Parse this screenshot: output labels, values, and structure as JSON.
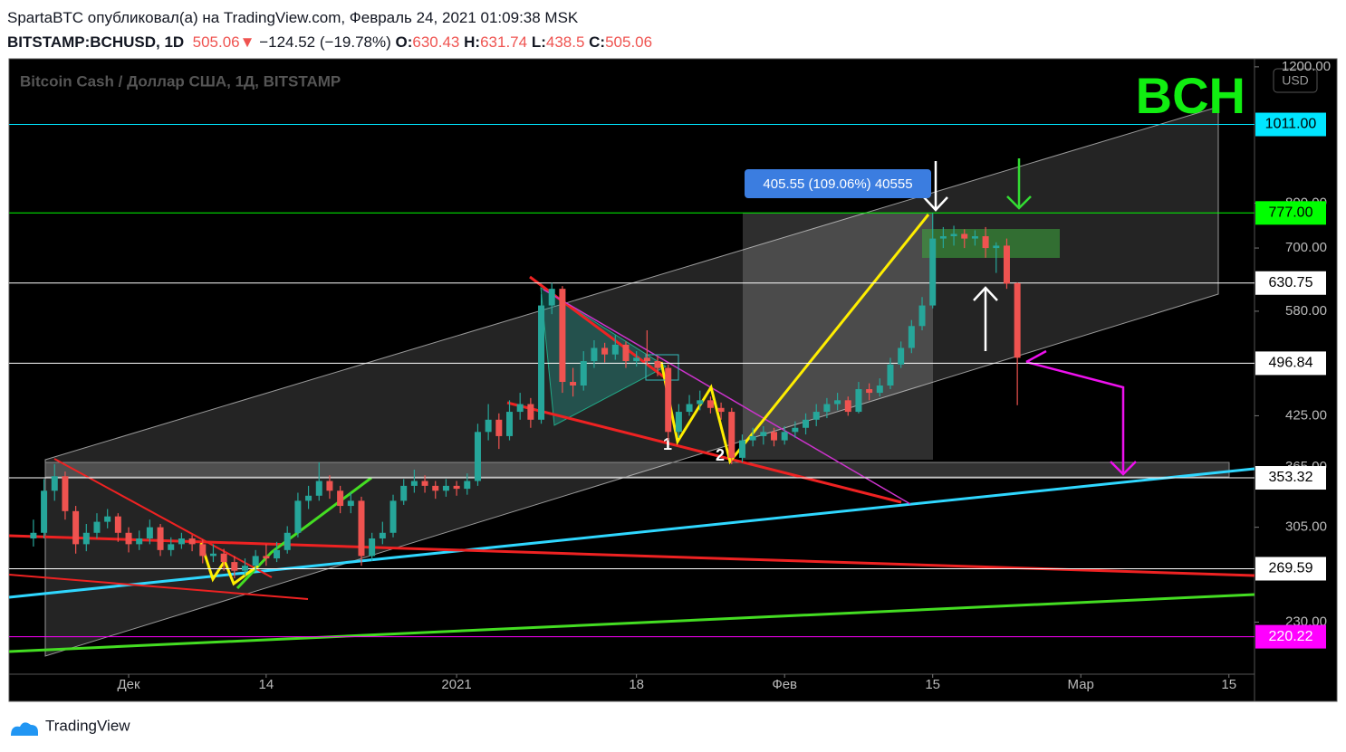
{
  "header": {
    "line1": "SpartaBTC опубликовал(а) на TradingView.com, Февраль 24, 2021 01:09:38 MSK",
    "symbol": "BITSTAMP:BCHUSD, 1D",
    "arrow": "▼",
    "change": "−124.52 (−19.78%)",
    "o": "O:",
    "h": "H:",
    "l": "L:",
    "c": "C:"
  },
  "footer": {
    "brand": "TradingView"
  },
  "chart_data": {
    "type": "candlestick",
    "title": "Bitcoin Cash / Доллар США, 1Д, BITSTAMP",
    "badge": "BCH",
    "currency": "USD",
    "log_scale": true,
    "annotations": {
      "measure": "405.55 (109.06%) 40555",
      "point1": "1",
      "point2": "2"
    },
    "up_color": "#26a69a",
    "down_color": "#ef5350",
    "x": [
      "2020-11-22",
      "2020-11-23",
      "2020-11-24",
      "2020-11-25",
      "2020-11-26",
      "2020-11-27",
      "2020-11-28",
      "2020-11-29",
      "2020-11-30",
      "2020-12-01",
      "2020-12-02",
      "2020-12-03",
      "2020-12-04",
      "2020-12-05",
      "2020-12-06",
      "2020-12-07",
      "2020-12-08",
      "2020-12-09",
      "2020-12-10",
      "2020-12-11",
      "2020-12-12",
      "2020-12-13",
      "2020-12-14",
      "2020-12-15",
      "2020-12-16",
      "2020-12-17",
      "2020-12-18",
      "2020-12-19",
      "2020-12-20",
      "2020-12-21",
      "2020-12-22",
      "2020-12-23",
      "2020-12-24",
      "2020-12-25",
      "2020-12-26",
      "2020-12-27",
      "2020-12-28",
      "2020-12-29",
      "2020-12-30",
      "2020-12-31",
      "2021-01-01",
      "2021-01-02",
      "2021-01-03",
      "2021-01-04",
      "2021-01-05",
      "2021-01-06",
      "2021-01-07",
      "2021-01-08",
      "2021-01-09",
      "2021-01-10",
      "2021-01-11",
      "2021-01-12",
      "2021-01-13",
      "2021-01-14",
      "2021-01-15",
      "2021-01-16",
      "2021-01-17",
      "2021-01-18",
      "2021-01-19",
      "2021-01-20",
      "2021-01-21",
      "2021-01-22",
      "2021-01-23",
      "2021-01-24",
      "2021-01-25",
      "2021-01-26",
      "2021-01-27",
      "2021-01-28",
      "2021-01-29",
      "2021-01-30",
      "2021-01-31",
      "2021-02-01",
      "2021-02-02",
      "2021-02-03",
      "2021-02-04",
      "2021-02-05",
      "2021-02-06",
      "2021-02-07",
      "2021-02-08",
      "2021-02-09",
      "2021-02-10",
      "2021-02-11",
      "2021-02-12",
      "2021-02-13",
      "2021-02-14",
      "2021-02-15",
      "2021-02-16",
      "2021-02-17",
      "2021-02-18",
      "2021-02-19",
      "2021-02-20",
      "2021-02-21",
      "2021-02-22",
      "2021-02-23"
    ],
    "open": [
      295,
      300,
      340,
      355,
      320,
      290,
      300,
      310,
      315,
      300,
      290,
      295,
      305,
      285,
      290,
      295,
      290,
      280,
      282,
      275,
      268,
      272,
      280,
      278,
      285,
      300,
      330,
      335,
      350,
      340,
      325,
      330,
      280,
      295,
      300,
      330,
      345,
      350,
      345,
      340,
      345,
      342,
      350,
      405,
      420,
      400,
      430,
      440,
      420,
      590,
      620,
      470,
      465,
      500,
      520,
      510,
      525,
      500,
      505,
      500,
      490,
      405,
      430,
      440,
      445,
      435,
      430,
      375,
      395,
      400,
      405,
      395,
      405,
      410,
      420,
      430,
      440,
      445,
      430,
      460,
      455,
      465,
      495,
      520,
      555,
      590,
      720,
      725,
      730,
      720,
      725,
      700,
      705,
      630.43
    ],
    "high": [
      312,
      352,
      368,
      360,
      325,
      308,
      318,
      322,
      318,
      305,
      302,
      312,
      308,
      296,
      300,
      298,
      294,
      290,
      286,
      280,
      278,
      285,
      290,
      292,
      306,
      338,
      345,
      370,
      356,
      345,
      338,
      334,
      300,
      310,
      336,
      352,
      362,
      356,
      350,
      352,
      350,
      358,
      415,
      440,
      428,
      445,
      455,
      448,
      610,
      631,
      625,
      490,
      515,
      532,
      528,
      540,
      530,
      515,
      548,
      508,
      495,
      440,
      452,
      458,
      450,
      442,
      435,
      402,
      410,
      412,
      410,
      412,
      418,
      428,
      440,
      448,
      455,
      450,
      470,
      468,
      475,
      505,
      530,
      565,
      605,
      777,
      745,
      748,
      740,
      738,
      745,
      712,
      720,
      631.74
    ],
    "low": [
      288,
      295,
      330,
      312,
      282,
      284,
      295,
      304,
      292,
      283,
      285,
      290,
      280,
      280,
      286,
      284,
      274,
      275,
      268,
      262,
      264,
      268,
      272,
      275,
      282,
      296,
      322,
      330,
      332,
      318,
      318,
      272,
      276,
      290,
      296,
      326,
      338,
      338,
      332,
      334,
      335,
      336,
      345,
      395,
      385,
      395,
      420,
      410,
      415,
      575,
      455,
      450,
      458,
      490,
      498,
      502,
      490,
      492,
      494,
      478,
      395,
      398,
      425,
      432,
      428,
      420,
      368,
      370,
      388,
      390,
      388,
      390,
      398,
      402,
      412,
      422,
      432,
      425,
      428,
      445,
      450,
      460,
      490,
      512,
      548,
      585,
      700,
      705,
      700,
      705,
      680,
      650,
      620,
      438.5
    ],
    "close": [
      300,
      340,
      355,
      320,
      290,
      300,
      310,
      315,
      300,
      290,
      295,
      305,
      285,
      290,
      295,
      290,
      280,
      282,
      275,
      268,
      272,
      280,
      278,
      285,
      300,
      330,
      335,
      350,
      340,
      325,
      330,
      280,
      295,
      300,
      330,
      345,
      350,
      345,
      340,
      345,
      342,
      350,
      405,
      420,
      400,
      430,
      440,
      420,
      590,
      620,
      470,
      465,
      500,
      520,
      510,
      525,
      500,
      505,
      500,
      490,
      405,
      430,
      440,
      445,
      435,
      430,
      375,
      395,
      400,
      405,
      395,
      405,
      410,
      420,
      430,
      440,
      445,
      430,
      460,
      455,
      465,
      495,
      520,
      555,
      590,
      720,
      725,
      730,
      720,
      725,
      700,
      705,
      629.58,
      505.06
    ],
    "ylim": [
      197,
      1229
    ],
    "yticks": [
      {
        "value": 1200,
        "label": "1200.00"
      },
      {
        "value": 800,
        "label": "800.00"
      },
      {
        "value": 700,
        "label": "700.00"
      },
      {
        "value": 580,
        "label": "580.00"
      },
      {
        "value": 425,
        "label": "425.00"
      },
      {
        "value": 365,
        "label": "365.00"
      },
      {
        "value": 305,
        "label": "305.00"
      },
      {
        "value": 230,
        "label": "230.00"
      }
    ],
    "levels": [
      {
        "value": 1011,
        "label": "1011.00",
        "color": "#00e5ff"
      },
      {
        "value": 777,
        "label": "777.00",
        "color": "#00ff00"
      },
      {
        "value": 630.75,
        "label": "630.75",
        "color": "#ffffff"
      },
      {
        "value": 496.84,
        "label": "496.84",
        "color": "#ffffff"
      },
      {
        "value": 353.32,
        "label": "353.32",
        "color": "#ffffff"
      },
      {
        "value": 269.59,
        "label": "269.59",
        "color": "#ffffff"
      },
      {
        "value": 220.22,
        "label": "220.22",
        "color": "#ff00ff"
      }
    ],
    "xticks": [
      {
        "value": "2020-12-01",
        "label": "Дек"
      },
      {
        "value": "2020-12-14",
        "label": "14"
      },
      {
        "value": "2021-01-01",
        "label": "2021"
      },
      {
        "value": "2021-01-18",
        "label": "18"
      },
      {
        "value": "2021-02-01",
        "label": "Фев"
      },
      {
        "value": "2021-02-15",
        "label": "15"
      },
      {
        "value": "2021-03-01",
        "label": "Мар"
      },
      {
        "value": "2021-03-15",
        "label": "15"
      }
    ]
  }
}
